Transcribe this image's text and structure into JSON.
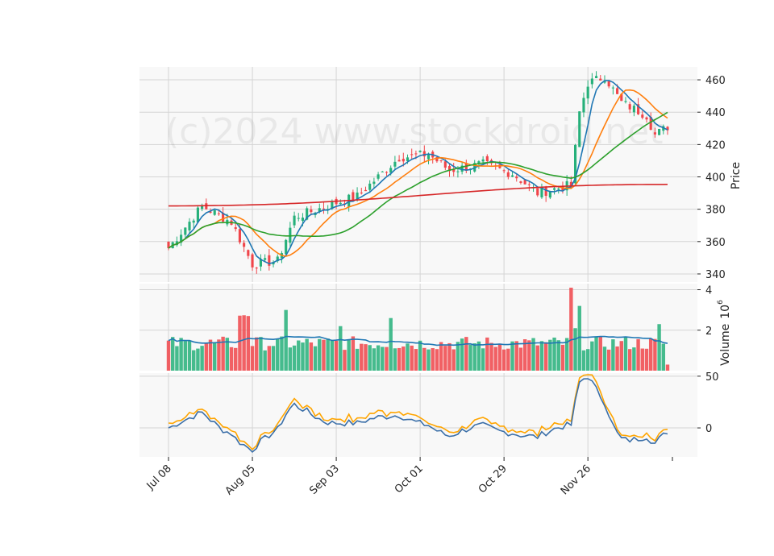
{
  "watermark": "(c)2024 www.stockdroid.net",
  "chart_data": {
    "type": "candlestick",
    "x_tick_labels": [
      "Jul 08",
      "Aug 05",
      "Sep 03",
      "Oct 01",
      "Oct 29",
      "Nov 26"
    ],
    "x_tick_index": [
      0,
      20,
      40,
      60,
      80,
      100
    ],
    "price_axis": {
      "label": "Price",
      "ylim": [
        335,
        468
      ],
      "ticks": [
        340,
        360,
        380,
        400,
        420,
        440,
        460
      ]
    },
    "volume_axis": {
      "label": "Volume",
      "exponent_label": "10",
      "exponent": "6",
      "ylim": [
        0,
        4.3
      ],
      "ticks": [
        2,
        4
      ]
    },
    "oscillator_axis": {
      "ylim": [
        -28,
        53
      ],
      "ticks": [
        0,
        50
      ]
    },
    "grid": true,
    "colors": {
      "up": "#26b07a",
      "down": "#f0454a",
      "ma_fast": "#1f77b4",
      "ma_mid": "#ff7f0e",
      "ma_slow": "#2ca02c",
      "ma_long": "#d62728",
      "osc_1": "#3b6fa8",
      "osc_2": "#ffa500",
      "volume_ma": "#1f77b4"
    },
    "key_points": [
      {
        "i": 0,
        "close": 356
      },
      {
        "i": 8,
        "close": 382
      },
      {
        "i": 15,
        "close": 372
      },
      {
        "i": 20,
        "close": 346
      },
      {
        "i": 26,
        "close": 348
      },
      {
        "i": 30,
        "close": 375
      },
      {
        "i": 40,
        "close": 384
      },
      {
        "i": 45,
        "close": 388
      },
      {
        "i": 55,
        "close": 412
      },
      {
        "i": 62,
        "close": 414
      },
      {
        "i": 67,
        "close": 404
      },
      {
        "i": 75,
        "close": 408
      },
      {
        "i": 82,
        "close": 402
      },
      {
        "i": 88,
        "close": 390
      },
      {
        "i": 96,
        "close": 395
      },
      {
        "i": 98,
        "close": 440
      },
      {
        "i": 100,
        "close": 458
      },
      {
        "i": 104,
        "close": 462
      },
      {
        "i": 108,
        "close": 446
      },
      {
        "i": 114,
        "close": 438
      },
      {
        "i": 116,
        "close": 426
      },
      {
        "i": 119,
        "close": 431
      }
    ]
  }
}
